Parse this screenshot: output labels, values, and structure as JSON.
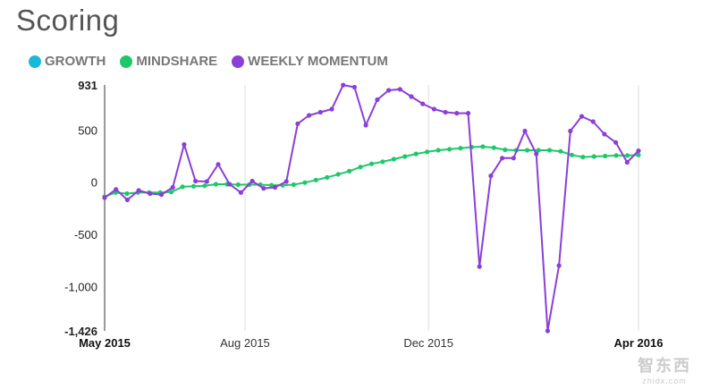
{
  "title": "Scoring",
  "legend": [
    {
      "label": "GROWTH",
      "color": "#1ab8d8"
    },
    {
      "label": "MINDSHARE",
      "color": "#1ec86a"
    },
    {
      "label": "WEEKLY MOMENTUM",
      "color": "#8b3fd6"
    }
  ],
  "watermark": {
    "main": "智东西",
    "sub": "zhidx.com"
  },
  "chart_data": {
    "type": "line",
    "title": "Scoring",
    "xlabel": "",
    "ylabel": "",
    "ylim": [
      -1426,
      931
    ],
    "y_ticks": [
      {
        "value": 931,
        "label": "931"
      },
      {
        "value": 500,
        "label": "500"
      },
      {
        "value": 0,
        "label": "0"
      },
      {
        "value": -500,
        "label": "-500"
      },
      {
        "value": -1000,
        "label": "-1,000"
      },
      {
        "value": -1426,
        "label": "-1,426"
      }
    ],
    "x_ticks": [
      {
        "week": 0,
        "label": "May 2015"
      },
      {
        "week": 12.7,
        "label": "Aug 2015"
      },
      {
        "week": 29.3,
        "label": "Dec 2015"
      },
      {
        "week": 48.3,
        "label": "Apr 2016"
      }
    ],
    "x_range": [
      0,
      48.3
    ],
    "series": [
      {
        "name": "MINDSHARE",
        "color": "#1ec86a",
        "values": [
          -140,
          -100,
          -110,
          -100,
          -100,
          -100,
          -95,
          -45,
          -40,
          -35,
          -20,
          -20,
          -25,
          -25,
          -25,
          -30,
          -30,
          -25,
          -5,
          20,
          45,
          75,
          105,
          145,
          175,
          195,
          220,
          245,
          270,
          290,
          305,
          315,
          325,
          335,
          340,
          330,
          310,
          305,
          305,
          305,
          305,
          295,
          260,
          240,
          245,
          250,
          255,
          255,
          260
        ]
      },
      {
        "name": "WEEKLY MOMENTUM",
        "color": "#8b3fd6",
        "values": [
          -150,
          -70,
          -170,
          -80,
          -110,
          -120,
          -50,
          360,
          10,
          5,
          170,
          -20,
          -100,
          10,
          -60,
          -50,
          5,
          560,
          640,
          670,
          700,
          930,
          910,
          545,
          790,
          880,
          890,
          820,
          750,
          700,
          670,
          660,
          660,
          -810,
          60,
          230,
          230,
          490,
          270,
          -1426,
          -800,
          490,
          630,
          580,
          460,
          380,
          190,
          300
        ]
      }
    ]
  }
}
